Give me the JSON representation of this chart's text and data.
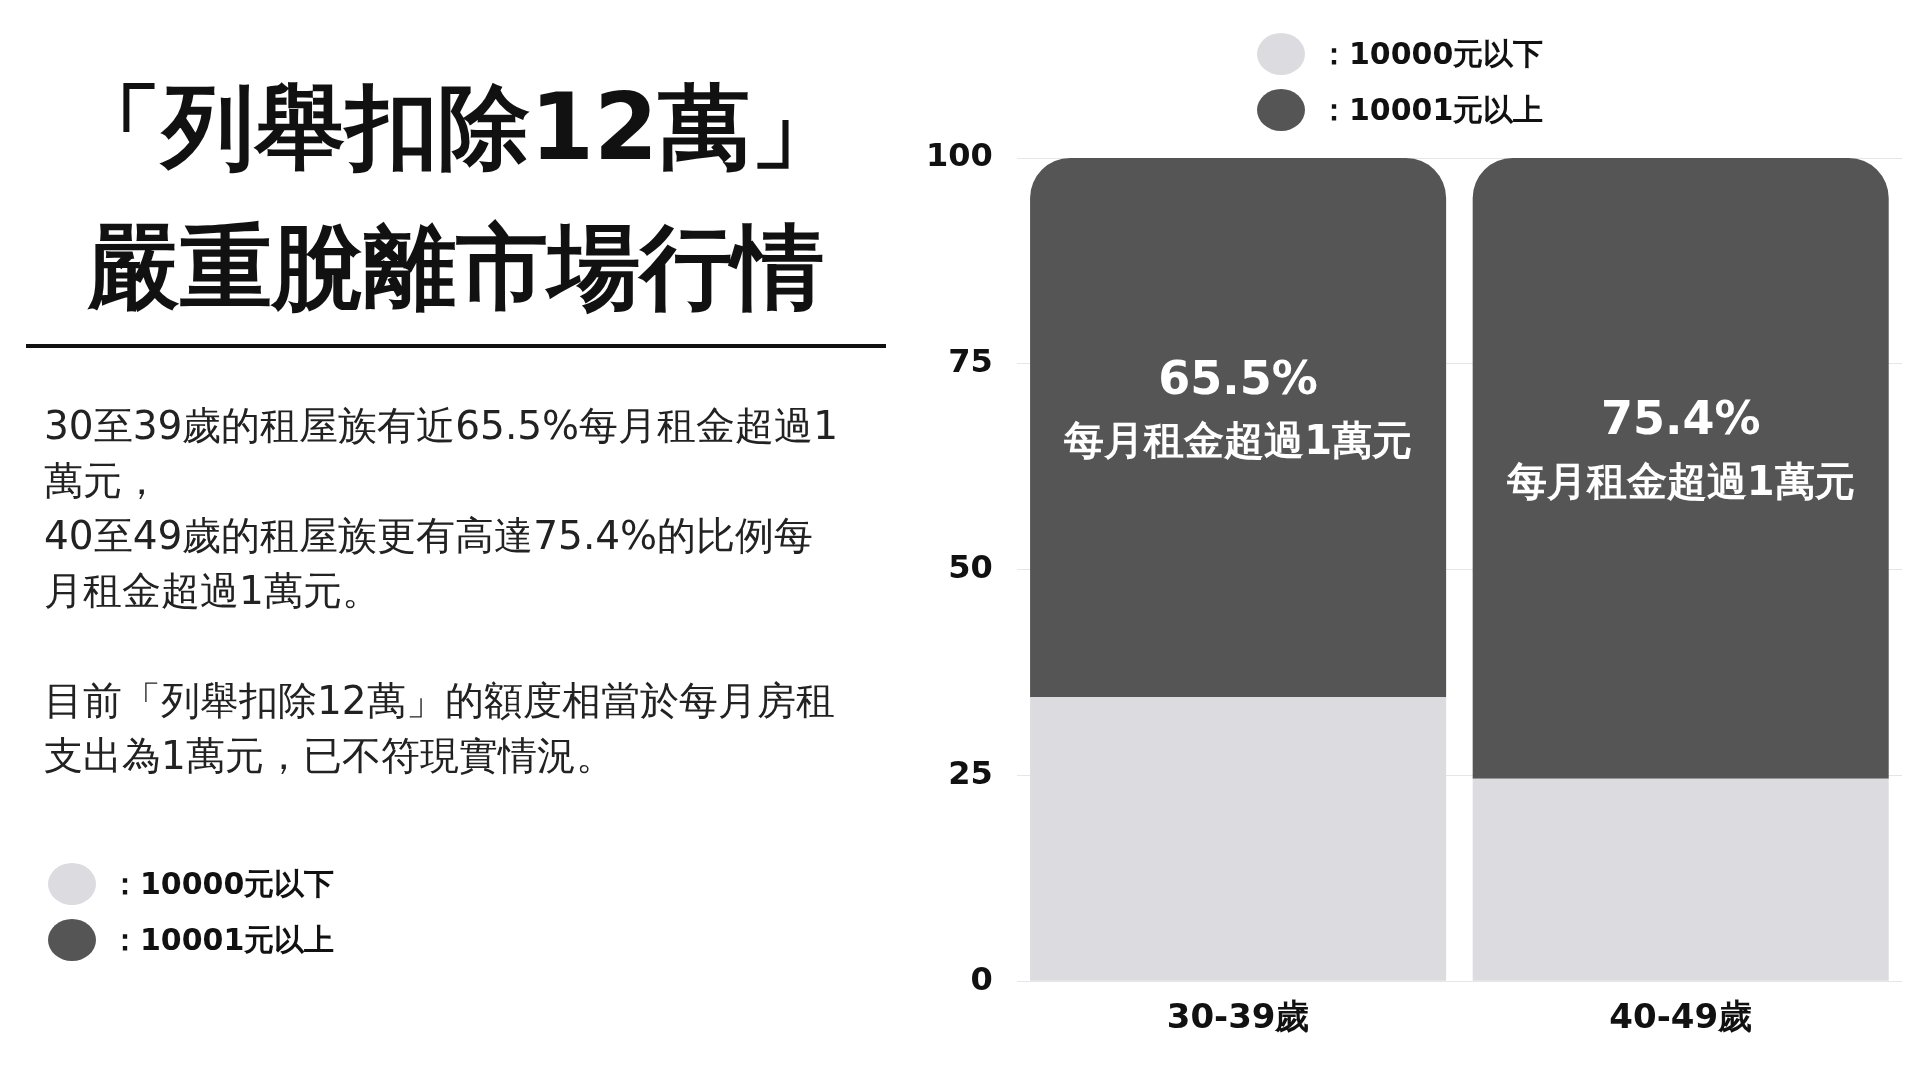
{
  "chart_data": {
    "type": "bar",
    "title": "「列舉扣除12萬」嚴重脫離市場行情",
    "annotations": [
      "30至39歲的租屋族有近65.5%每月租金超過1萬元，\n40至49歲的租屋族更有高達75.4%的比例每月租金超過1萬元。",
      "目前「列舉扣除12萬」的額度相當於每月房租支出為1萬元，已不符現實情況。"
    ],
    "categories": [
      "30-39歲",
      "40-49歲"
    ],
    "series": [
      {
        "name": "：10000元以下",
        "color": "#dcdce0",
        "values": [
          34.5,
          24.6
        ]
      },
      {
        "name": "：10001元以上",
        "color": "#555555",
        "values": [
          65.5,
          75.4
        ],
        "value_labels": [
          "65.5%\n每月租金超過1萬元",
          "75.4%\n每月租金超過1萬元"
        ]
      }
    ],
    "stacked": true,
    "ylim": [
      0,
      100
    ],
    "yticks": [
      0,
      25,
      50,
      75,
      100
    ],
    "grid": "y",
    "legend": "top"
  }
}
